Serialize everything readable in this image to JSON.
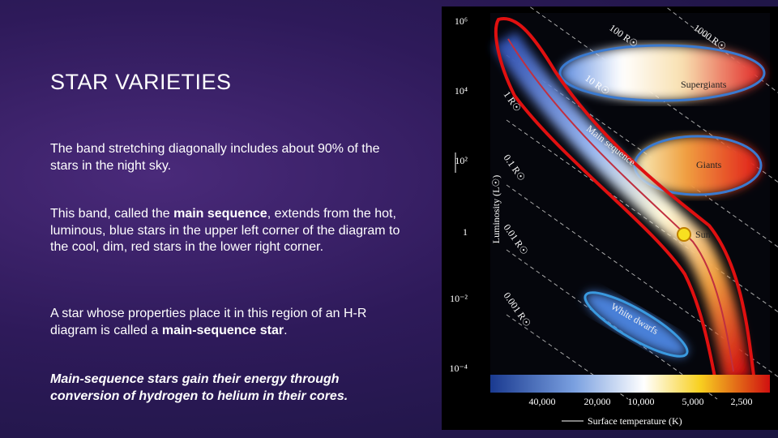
{
  "title": "STAR VARIETIES",
  "paragraphs": [
    [
      "The band stretching diagonally includes about 90% of the stars in the night sky."
    ],
    [
      "This band, called the ",
      "main sequence",
      ", extends from the hot, luminous, blue stars in the upper left corner of the diagram to the cool, dim, red stars in the lower right corner."
    ],
    [
      "A star whose properties place it in this region of an H-R diagram is called a ",
      "main-sequence star",
      "."
    ],
    [
      "Main-sequence stars gain their energy through conversion of hydrogen to helium in their cores."
    ]
  ],
  "diagram": {
    "y_axis_label": "Luminosity (L☉)",
    "y_ticks": [
      "10⁶",
      "10⁴",
      "10²",
      "1",
      "10⁻²",
      "10⁻⁴"
    ],
    "x_axis_label": "Surface temperature (K)",
    "x_ticks": [
      "40,000",
      "20,000",
      "10,000",
      "5,000",
      "2,500"
    ],
    "radius_labels": [
      "1000 R☉",
      "100 R☉",
      "10 R☉",
      "1 R☉",
      "0.1 R☉",
      "0.01 R☉",
      "0.001 R☉"
    ],
    "regions": [
      "Supergiants",
      "Giants",
      "Main sequence",
      "White dwarfs"
    ],
    "sun_label": "Sun"
  }
}
